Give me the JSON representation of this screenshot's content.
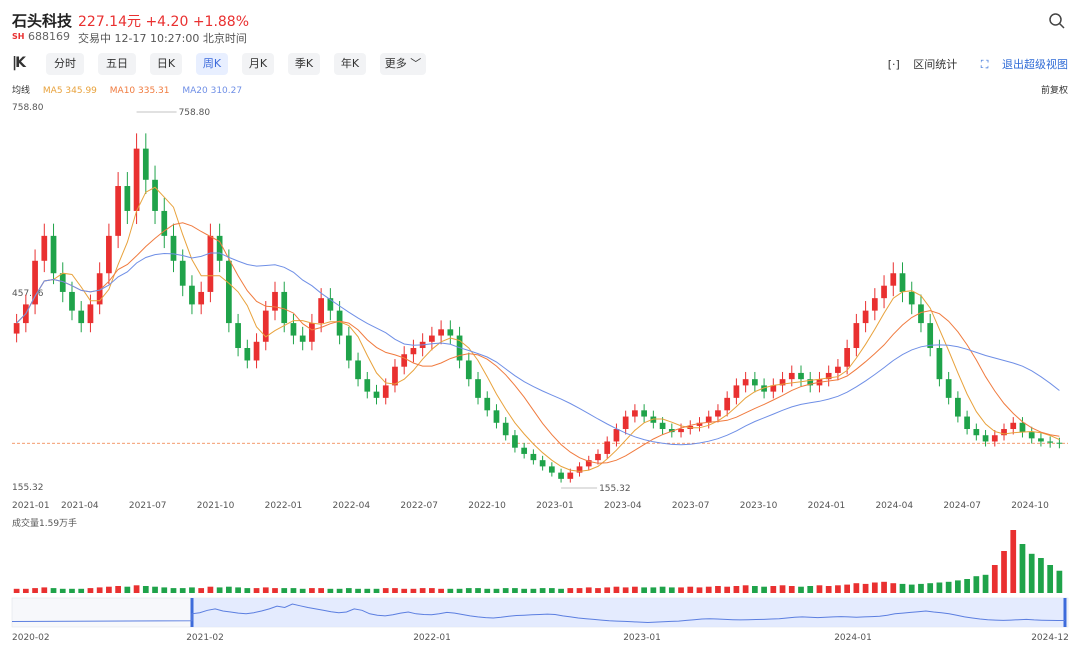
{
  "header": {
    "name": "石头科技",
    "price": "227.14元",
    "change": "+4.20",
    "change_pct": "+1.88%",
    "exchange_badge": "SH",
    "code": "688169",
    "status": "交易中 12-17 10:27:00 北京时间"
  },
  "toolbar": {
    "periods": [
      "分时",
      "五日",
      "日K",
      "周K",
      "月K",
      "季K",
      "年K",
      "更多"
    ],
    "active_period": "周K",
    "range_stats": "区间统计",
    "exit_view": "退出超级视图",
    "adjust": "前复权"
  },
  "ma_legend": {
    "label": "均线",
    "ma5": "MA5 345.99",
    "ma10": "MA10 335.31",
    "ma20": "MA20 310.27"
  },
  "colors": {
    "up": "#e93030",
    "down": "#1fa34a",
    "ma5": "#e8a23c",
    "ma10": "#f07b3f",
    "ma20": "#6f8fe6",
    "accent": "#3d6bdb"
  },
  "chart_data": {
    "type": "candlestick",
    "y_axis_labels": [
      "758.80",
      "457.06",
      "155.32"
    ],
    "ylim": [
      155.32,
      758.8
    ],
    "max_annotation": "758.80",
    "min_annotation": "155.32",
    "x_tick_labels": [
      "2021-01",
      "2021-04",
      "2021-07",
      "2021-10",
      "2022-01",
      "2022-04",
      "2022-07",
      "2022-10",
      "2023-01",
      "2023-04",
      "2023-07",
      "2023-10",
      "2024-01",
      "2024-04",
      "2024-07",
      "2024-10"
    ],
    "current_price": 227.14,
    "weekly_close": [
      420,
      450,
      520,
      560,
      500,
      470,
      440,
      420,
      450,
      500,
      560,
      640,
      600,
      700,
      650,
      600,
      560,
      520,
      480,
      450,
      470,
      560,
      520,
      420,
      380,
      360,
      390,
      440,
      470,
      420,
      400,
      390,
      420,
      460,
      440,
      400,
      360,
      330,
      310,
      300,
      320,
      350,
      370,
      380,
      390,
      400,
      410,
      400,
      360,
      330,
      300,
      280,
      260,
      240,
      220,
      210,
      200,
      190,
      180,
      170,
      180,
      190,
      200,
      210,
      230,
      250,
      270,
      280,
      270,
      260,
      250,
      245,
      250,
      255,
      260,
      270,
      280,
      300,
      320,
      330,
      320,
      310,
      320,
      330,
      340,
      330,
      320,
      330,
      340,
      350,
      380,
      420,
      440,
      460,
      480,
      500,
      470,
      450,
      420,
      380,
      330,
      300,
      270,
      250,
      240,
      230,
      240,
      250,
      260,
      245,
      235,
      230,
      228,
      227
    ],
    "volume_label": "成交量1.59万手",
    "volume": [
      0.3,
      0.3,
      0.35,
      0.4,
      0.35,
      0.3,
      0.3,
      0.3,
      0.35,
      0.4,
      0.45,
      0.5,
      0.45,
      0.55,
      0.5,
      0.45,
      0.4,
      0.35,
      0.35,
      0.4,
      0.35,
      0.45,
      0.4,
      0.45,
      0.4,
      0.35,
      0.35,
      0.4,
      0.35,
      0.35,
      0.35,
      0.3,
      0.35,
      0.35,
      0.3,
      0.3,
      0.35,
      0.3,
      0.3,
      0.3,
      0.35,
      0.35,
      0.3,
      0.3,
      0.35,
      0.35,
      0.3,
      0.3,
      0.3,
      0.35,
      0.35,
      0.3,
      0.3,
      0.35,
      0.35,
      0.3,
      0.3,
      0.35,
      0.35,
      0.3,
      0.35,
      0.35,
      0.4,
      0.35,
      0.4,
      0.45,
      0.4,
      0.45,
      0.4,
      0.4,
      0.45,
      0.4,
      0.4,
      0.45,
      0.4,
      0.45,
      0.5,
      0.45,
      0.5,
      0.55,
      0.5,
      0.45,
      0.5,
      0.55,
      0.5,
      0.45,
      0.5,
      0.55,
      0.5,
      0.55,
      0.6,
      0.7,
      0.65,
      0.75,
      0.8,
      0.7,
      0.65,
      0.6,
      0.65,
      0.7,
      0.75,
      0.8,
      0.9,
      1.0,
      1.2,
      1.3,
      2.0,
      3.0,
      4.5,
      3.5,
      2.8,
      2.5,
      2.0,
      1.59
    ],
    "navigator_x_labels": [
      "2020-02",
      "2021-02",
      "2022-01",
      "2023-01",
      "2024-01",
      "2024-12"
    ]
  }
}
